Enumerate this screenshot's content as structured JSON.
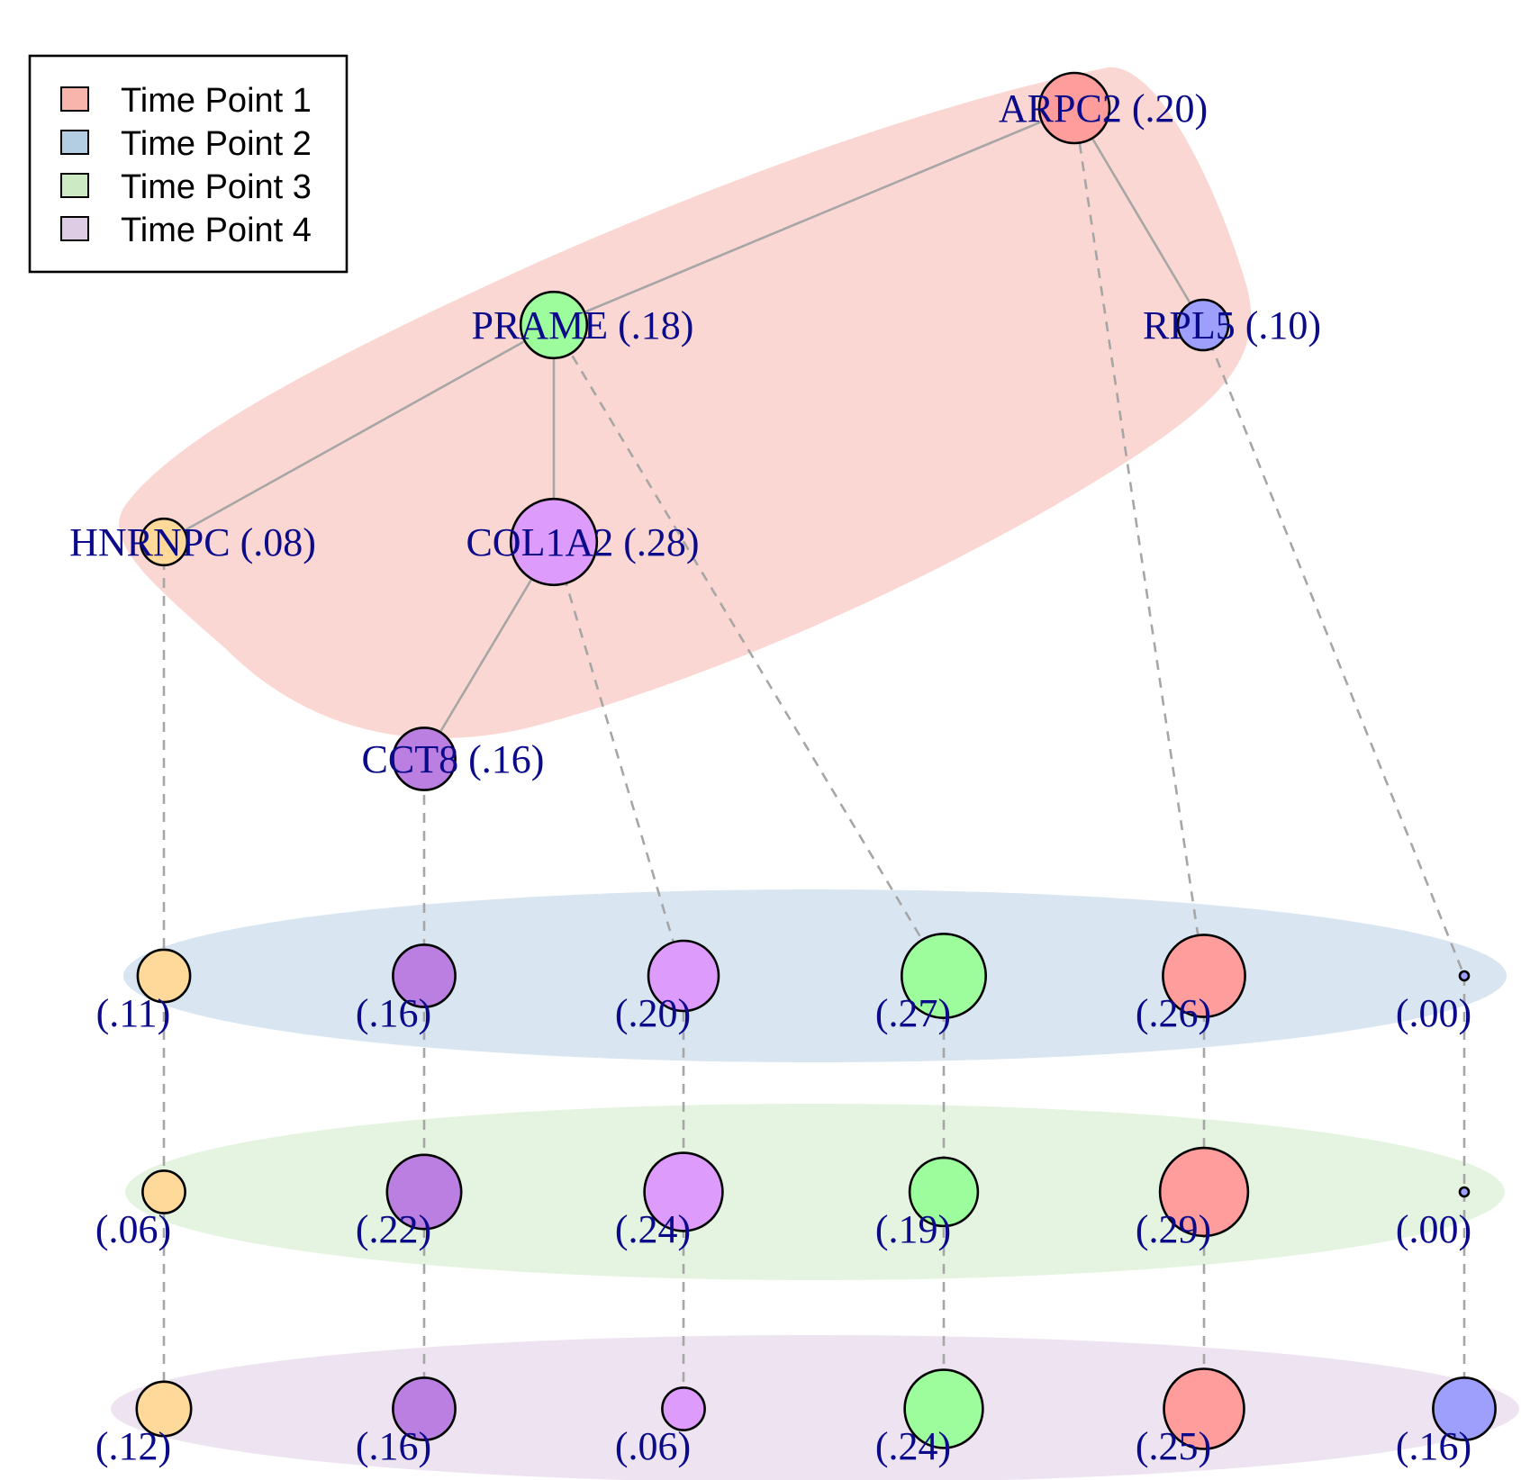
{
  "legend": [
    {
      "label": "Time Point 1",
      "color": "#f7b5ac"
    },
    {
      "label": "Time Point 2",
      "color": "#b3cde3"
    },
    {
      "label": "Time Point 3",
      "color": "#ccebc5"
    },
    {
      "label": "Time Point 4",
      "color": "#decbe4"
    }
  ],
  "group_colors": [
    "#fbd7d3",
    "#d9e6f2",
    "#e5f4e1",
    "#eee3f0"
  ],
  "gene_colors": {
    "HNRNPC": "#ffd99a",
    "CCT8": "#ba7fe0",
    "COL1A2": "#dd9cfc",
    "PRAME": "#9dfc9b",
    "ARPC2": "#ff9d9d",
    "RPL5": "#9e9efc"
  },
  "network_nodes": [
    {
      "id": "ARPC2",
      "label": "ARPC2 (.20)",
      "value": 0.2
    },
    {
      "id": "PRAME",
      "label": "PRAME (.18)",
      "value": 0.18
    },
    {
      "id": "RPL5",
      "label": "RPL5 (.10)",
      "value": 0.1
    },
    {
      "id": "HNRNPC",
      "label": "HNRNPC (.08)",
      "value": 0.08
    },
    {
      "id": "COL1A2",
      "label": "COL1A2 (.28)",
      "value": 0.28
    },
    {
      "id": "CCT8",
      "label": "CCT8 (.16)",
      "value": 0.16
    }
  ],
  "network_edges": [
    [
      "ARPC2",
      "PRAME"
    ],
    [
      "ARPC2",
      "RPL5"
    ],
    [
      "PRAME",
      "HNRNPC"
    ],
    [
      "PRAME",
      "COL1A2"
    ],
    [
      "COL1A2",
      "CCT8"
    ]
  ],
  "column_order": [
    "HNRNPC",
    "CCT8",
    "COL1A2",
    "PRAME",
    "ARPC2",
    "RPL5"
  ],
  "time_rows": [
    {
      "time_point": "Time Point 2",
      "values": [
        0.11,
        0.16,
        0.2,
        0.27,
        0.26,
        0.0
      ],
      "labels": [
        "(.11)",
        "(.16)",
        "(.20)",
        "(.27)",
        "(.26)",
        "(.00)"
      ]
    },
    {
      "time_point": "Time Point 3",
      "values": [
        0.06,
        0.22,
        0.24,
        0.19,
        0.29,
        0.0
      ],
      "labels": [
        "(.06)",
        "(.22)",
        "(.24)",
        "(.19)",
        "(.29)",
        "(.00)"
      ]
    },
    {
      "time_point": "Time Point 4",
      "values": [
        0.12,
        0.16,
        0.06,
        0.24,
        0.25,
        0.16
      ],
      "labels": [
        "(.12)",
        "(.16)",
        "(.06)",
        "(.24)",
        "(.25)",
        "(.16)"
      ]
    }
  ]
}
